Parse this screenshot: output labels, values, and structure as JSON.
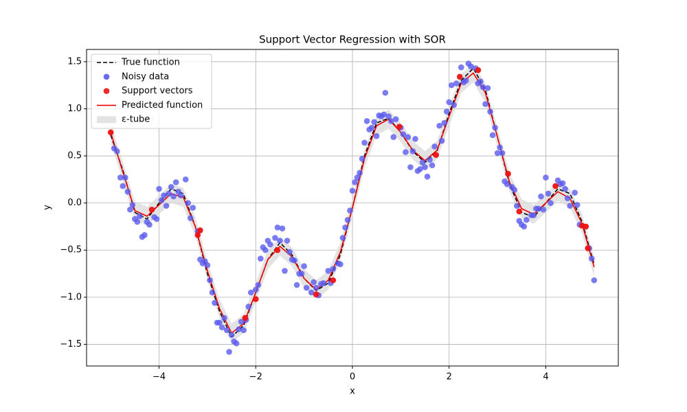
{
  "chart_data": {
    "type": "line",
    "title": "Support Vector Regression with SOR",
    "x_label": "x",
    "y_label": "y",
    "xlim": [
      -5.5,
      5.5
    ],
    "ylim": [
      -1.73,
      1.63
    ],
    "xticks": [
      {
        "value": -4,
        "label": "−4"
      },
      {
        "value": -2,
        "label": "−2"
      },
      0,
      2,
      4
    ],
    "yticks": [
      {
        "value": -1.5,
        "label": "−1.5"
      },
      {
        "value": -1.0,
        "label": "−1.0"
      },
      {
        "value": -0.5,
        "label": "−0.5"
      },
      {
        "value": 0,
        "label": "0.0"
      },
      0.5,
      {
        "value": 1,
        "label": "1.0"
      },
      1.5
    ],
    "grid": true,
    "legend": "upper left",
    "x": [
      -5,
      -4.75,
      -4.5,
      -4.25,
      -4,
      -3.75,
      -3.5,
      -3.25,
      -3,
      -2.75,
      -2.5,
      -2.25,
      -2,
      -1.75,
      -1.5,
      -1.25,
      -1,
      -0.75,
      -0.5,
      -0.25,
      0,
      0.25,
      0.5,
      0.75,
      1,
      1.25,
      1.5,
      1.75,
      2,
      2.25,
      2.5,
      2.75,
      3,
      3.25,
      3.5,
      3.75,
      4,
      4.25,
      4.5,
      4.75,
      5
    ],
    "series": [
      {
        "name": "True function",
        "type": "line",
        "color": "#000000",
        "dashed": true,
        "values": [
          0.72,
          0.35,
          -0.1,
          -0.17,
          0.0,
          0.15,
          0.1,
          -0.25,
          -0.75,
          -1.15,
          -1.42,
          -1.3,
          -0.95,
          -0.6,
          -0.42,
          -0.55,
          -0.8,
          -0.93,
          -0.85,
          -0.55,
          -0.05,
          0.5,
          0.85,
          0.9,
          0.75,
          0.55,
          0.43,
          0.55,
          0.95,
          1.3,
          1.43,
          1.2,
          0.7,
          0.2,
          -0.1,
          -0.15,
          0.0,
          0.15,
          0.1,
          -0.2,
          -0.65
        ]
      },
      {
        "name": "Noisy data",
        "type": "scatter",
        "color": "#5a5af0",
        "x": [
          -4.93,
          -4.87,
          -4.8,
          -4.75,
          -4.7,
          -4.65,
          -4.6,
          -4.55,
          -4.5,
          -4.45,
          -4.4,
          -4.35,
          -4.3,
          -4.25,
          -4.2,
          -4.1,
          -4.05,
          -4.0,
          -3.95,
          -3.9,
          -3.85,
          -3.8,
          -3.75,
          -3.7,
          -3.65,
          -3.6,
          -3.55,
          -3.45,
          -3.4,
          -3.35,
          -3.3,
          -3.2,
          -3.15,
          -3.1,
          -3.05,
          -3.0,
          -2.95,
          -2.9,
          -2.85,
          -2.8,
          -2.75,
          -2.7,
          -2.65,
          -2.6,
          -2.55,
          -2.5,
          -2.45,
          -2.4,
          -2.35,
          -2.3,
          -2.25,
          -2.2,
          -2.15,
          -2.1,
          -2.0,
          -1.95,
          -1.9,
          -1.85,
          -1.8,
          -1.75,
          -1.7,
          -1.6,
          -1.55,
          -1.5,
          -1.45,
          -1.4,
          -1.35,
          -1.3,
          -1.25,
          -1.2,
          -1.15,
          -1.1,
          -1.05,
          -1.0,
          -0.95,
          -0.85,
          -0.8,
          -0.75,
          -0.7,
          -0.65,
          -0.6,
          -0.5,
          -0.45,
          -0.4,
          -0.3,
          -0.25,
          -0.2,
          -0.15,
          -0.1,
          -0.05,
          0.0,
          0.05,
          0.1,
          0.15,
          0.2,
          0.25,
          0.3,
          0.35,
          0.4,
          0.45,
          0.5,
          0.55,
          0.6,
          0.65,
          0.68,
          0.75,
          0.8,
          0.85,
          0.9,
          1.0,
          1.05,
          1.1,
          1.15,
          1.2,
          1.25,
          1.3,
          1.35,
          1.4,
          1.45,
          1.5,
          1.55,
          1.6,
          1.65,
          1.7,
          1.8,
          1.85,
          1.9,
          1.95,
          2.0,
          2.05,
          2.1,
          2.15,
          2.25,
          2.3,
          2.35,
          2.4,
          2.45,
          2.55,
          2.6,
          2.65,
          2.7,
          2.75,
          2.8,
          2.85,
          2.9,
          2.95,
          3.0,
          3.05,
          3.1,
          3.15,
          3.2,
          3.3,
          3.35,
          3.4,
          3.45,
          3.5,
          3.55,
          3.6,
          3.7,
          3.75,
          3.8,
          3.85,
          3.9,
          3.95,
          4.0,
          4.05,
          4.1,
          4.25,
          4.3,
          4.35,
          4.4,
          4.45,
          4.5,
          4.6,
          4.65,
          4.7,
          4.9,
          4.95,
          5.0
        ],
        "values": [
          0.58,
          0.55,
          0.27,
          0.18,
          0.27,
          0.12,
          -0.07,
          -0.02,
          -0.17,
          -0.2,
          -0.14,
          -0.36,
          -0.34,
          -0.2,
          -0.23,
          -0.15,
          -0.17,
          0.15,
          0.03,
          0.08,
          -0.03,
          0.1,
          0.17,
          0.07,
          0.22,
          0.12,
          0.08,
          0.25,
          0.0,
          -0.16,
          -0.05,
          -0.3,
          -0.6,
          -0.64,
          -0.62,
          -0.66,
          -0.82,
          -0.95,
          -1.06,
          -1.27,
          -1.27,
          -1.32,
          -1.22,
          -1.35,
          -1.58,
          -1.4,
          -1.47,
          -1.49,
          -1.34,
          -1.26,
          -1.35,
          -1.24,
          -1.1,
          -0.95,
          -0.92,
          -0.87,
          -0.59,
          -0.47,
          -0.5,
          -0.4,
          -0.44,
          -0.37,
          -0.26,
          -0.4,
          -0.27,
          -0.72,
          -0.4,
          -0.52,
          -0.6,
          -0.61,
          -0.87,
          -0.75,
          -0.75,
          -0.67,
          -0.9,
          -0.95,
          -0.84,
          -0.9,
          -0.98,
          -0.86,
          -0.85,
          -0.72,
          -0.85,
          -0.7,
          -0.64,
          -0.65,
          -0.37,
          -0.26,
          -0.18,
          -0.08,
          0.13,
          0.22,
          0.27,
          0.32,
          0.47,
          0.64,
          0.87,
          0.78,
          0.8,
          0.86,
          0.71,
          0.93,
          0.92,
          0.94,
          1.17,
          0.92,
          0.87,
          0.7,
          0.89,
          0.8,
          0.73,
          0.54,
          0.7,
          0.38,
          0.55,
          0.68,
          0.34,
          0.36,
          0.43,
          0.38,
          0.28,
          0.46,
          0.4,
          0.6,
          0.82,
          0.66,
          0.85,
          0.97,
          1.07,
          1.25,
          1.04,
          1.27,
          1.44,
          1.28,
          1.3,
          1.48,
          1.45,
          1.43,
          1.27,
          1.29,
          1.23,
          1.05,
          1.22,
          0.97,
          0.72,
          0.8,
          0.53,
          0.59,
          0.53,
          0.23,
          0.2,
          0.17,
          0.14,
          -0.03,
          -0.19,
          -0.23,
          -0.25,
          -0.18,
          -0.13,
          -0.13,
          -0.06,
          -0.06,
          0.07,
          -0.07,
          0.27,
          0.1,
          0.0,
          0.24,
          0.2,
          0.21,
          0.15,
          0.05,
          -0.03,
          0.11,
          -0.02,
          -0.23,
          -0.48,
          -0.59,
          -0.82
        ]
      },
      {
        "name": "Support vectors",
        "type": "scatter",
        "color": "#ee1111",
        "x": [
          -5.0,
          -4.15,
          -3.2,
          -3.15,
          -2.22,
          -2.0,
          -1.55,
          -0.75,
          -0.4,
          0.97,
          1.73,
          2.22,
          2.6,
          3.22,
          3.45,
          4.2,
          4.75,
          4.83,
          4.87
        ],
        "values": [
          0.75,
          -0.07,
          -0.34,
          -0.29,
          -1.22,
          -1.02,
          -0.5,
          -0.97,
          -0.82,
          0.81,
          0.51,
          1.34,
          1.41,
          0.31,
          -0.09,
          0.18,
          -0.24,
          -0.25,
          -0.48
        ]
      },
      {
        "name": "Predicted function",
        "type": "line",
        "color": "#ee0000",
        "dashed": false,
        "values": [
          0.75,
          0.33,
          -0.08,
          -0.14,
          -0.02,
          0.1,
          0.06,
          -0.25,
          -0.72,
          -1.12,
          -1.38,
          -1.28,
          -0.95,
          -0.6,
          -0.46,
          -0.57,
          -0.8,
          -0.92,
          -0.82,
          -0.52,
          -0.05,
          0.47,
          0.82,
          0.89,
          0.75,
          0.56,
          0.45,
          0.56,
          0.92,
          1.27,
          1.38,
          1.17,
          0.7,
          0.22,
          -0.06,
          -0.12,
          0.0,
          0.12,
          0.05,
          -0.22,
          -0.68
        ]
      },
      {
        "name": "ε-tube",
        "type": "band",
        "color": "#d9d9d9",
        "epsilon": 0.1
      }
    ]
  }
}
